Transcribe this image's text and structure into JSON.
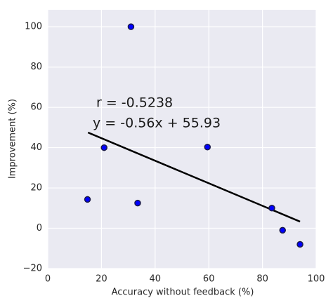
{
  "chart_data": {
    "type": "scatter",
    "x_label": "Accuracy without feedback (%)",
    "y_label": "Improvement (%)",
    "x": [
      31,
      21,
      59.5,
      14.8,
      33.5,
      83.5,
      87.5,
      94
    ],
    "values": [
      100,
      40,
      40.3,
      14.3,
      12.5,
      10,
      -1,
      -8
    ],
    "color": "#0000ff",
    "fit": {
      "x": [
        15,
        94
      ],
      "values": [
        47.5,
        3.3
      ],
      "color": "#000000"
    },
    "annotations": [
      "r = -0.5238",
      "y = -0.56x + 55.93"
    ],
    "xlim": [
      0,
      100
    ],
    "ylim": [
      -20,
      108.4
    ],
    "xticks": [
      0,
      20,
      40,
      60,
      80,
      100
    ],
    "yticks": [
      {
        "value": -20,
        "label": "−20"
      },
      0,
      20,
      40,
      60,
      80,
      100
    ],
    "grid": true
  }
}
